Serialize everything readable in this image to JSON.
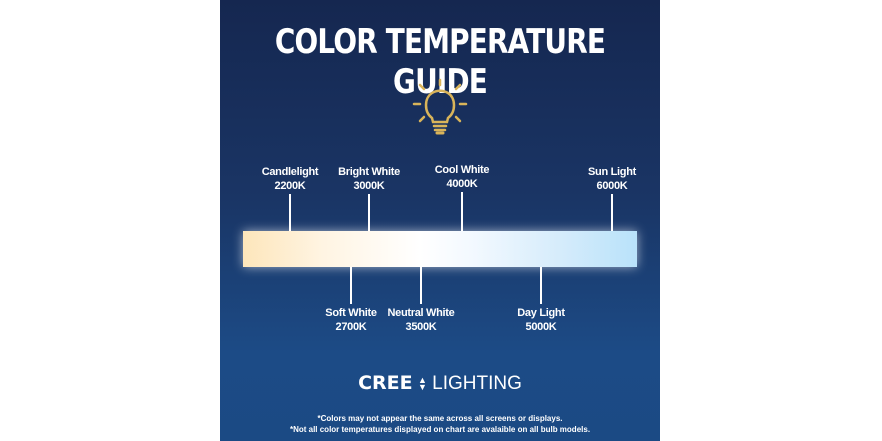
{
  "title": "COLOR TEMPERATURE GUIDE",
  "icon": "lightbulb-icon",
  "colors": {
    "bulb": "#d9b45a",
    "background_top": "#152750",
    "background_bottom": "#1c4b86"
  },
  "temperatures_top": [
    {
      "name": "Candlelight",
      "value": "2200K"
    },
    {
      "name": "Bright White",
      "value": "3000K"
    },
    {
      "name": "Cool White",
      "value": "4000K"
    },
    {
      "name": "Sun Light",
      "value": "6000K"
    }
  ],
  "temperatures_bottom": [
    {
      "name": "Soft White",
      "value": "2700K"
    },
    {
      "name": "Neutral White",
      "value": "3500K"
    },
    {
      "name": "Day Light",
      "value": "5000K"
    }
  ],
  "brand": {
    "name": "CREE",
    "suffix": "LIGHTING"
  },
  "notes": [
    "*Colors may not appear the same across all screens or displays.",
    "*Not all color temperatures displayed on chart are avalaible on all bulb models."
  ]
}
